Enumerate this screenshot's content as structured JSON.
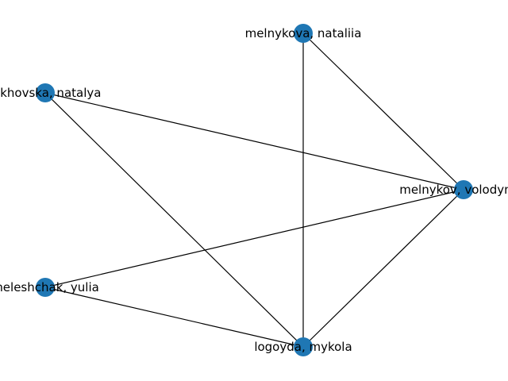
{
  "graph": {
    "node_color": "#1f77b4",
    "edge_color": "#000000",
    "nodes": [
      {
        "id": "melnykova",
        "label": "melnykova, nataliia"
      },
      {
        "id": "lukhovska",
        "label": "lukhovska, natalya"
      },
      {
        "id": "melnykov",
        "label": "melnykov, volodymyr"
      },
      {
        "id": "meleshchak",
        "label": "meleshchak, yulia"
      },
      {
        "id": "logoyda",
        "label": "logoyda, mykola"
      }
    ],
    "edges": [
      [
        "melnykova",
        "melnykov"
      ],
      [
        "melnykova",
        "logoyda"
      ],
      [
        "lukhovska",
        "melnykov"
      ],
      [
        "lukhovska",
        "logoyda"
      ],
      [
        "meleshchak",
        "melnykov"
      ],
      [
        "meleshchak",
        "logoyda"
      ],
      [
        "melnykov",
        "logoyda"
      ]
    ]
  }
}
